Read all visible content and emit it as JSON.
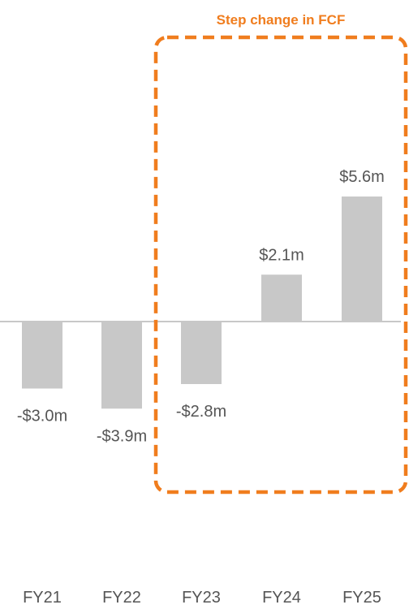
{
  "chart_data": {
    "type": "bar",
    "categories": [
      "FY21",
      "FY22",
      "FY23",
      "FY24",
      "FY25"
    ],
    "values": [
      -3.0,
      -3.9,
      -2.8,
      2.1,
      5.6
    ],
    "value_labels": [
      "-$3.0m",
      "-$3.9m",
      "-$2.8m",
      "$2.1m",
      "$5.6m"
    ],
    "title": "",
    "xlabel": "",
    "ylabel": "",
    "bar_color": "#c8c8c8",
    "grid": false,
    "annotation": {
      "text": "Step change in FCF",
      "color": "#f07d1e",
      "style": "dashed-box",
      "categories": [
        "FY23",
        "FY24",
        "FY25"
      ]
    }
  }
}
